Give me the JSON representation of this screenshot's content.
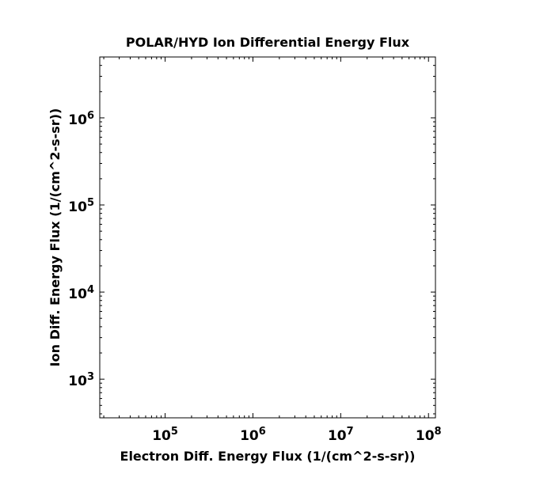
{
  "chart_data": {
    "type": "scatter",
    "title": "POLAR/HYD  Ion Differential Energy Flux",
    "xlabel": "Electron Diff. Energy Flux (1/(cm^2-s-sr))",
    "ylabel": "Ion Diff. Energy Flux (1/(cm^2-s-sr))",
    "x_scale": "log",
    "y_scale": "log",
    "xlim": [
      18000,
      120000000
    ],
    "ylim": [
      360,
      5000000
    ],
    "x_ticks": [
      {
        "value": 100000,
        "base": "10",
        "exp": "5"
      },
      {
        "value": 1000000,
        "base": "10",
        "exp": "6"
      },
      {
        "value": 10000000,
        "base": "10",
        "exp": "7"
      },
      {
        "value": 100000000,
        "base": "10",
        "exp": "8"
      }
    ],
    "y_ticks": [
      {
        "value": 1000,
        "base": "10",
        "exp": "3"
      },
      {
        "value": 10000,
        "base": "10",
        "exp": "4"
      },
      {
        "value": 100000,
        "base": "10",
        "exp": "5"
      },
      {
        "value": 1000000,
        "base": "10",
        "exp": "6"
      }
    ],
    "grid": false,
    "series": [],
    "colors": {
      "axis": "#000000",
      "background": "#ffffff"
    }
  }
}
